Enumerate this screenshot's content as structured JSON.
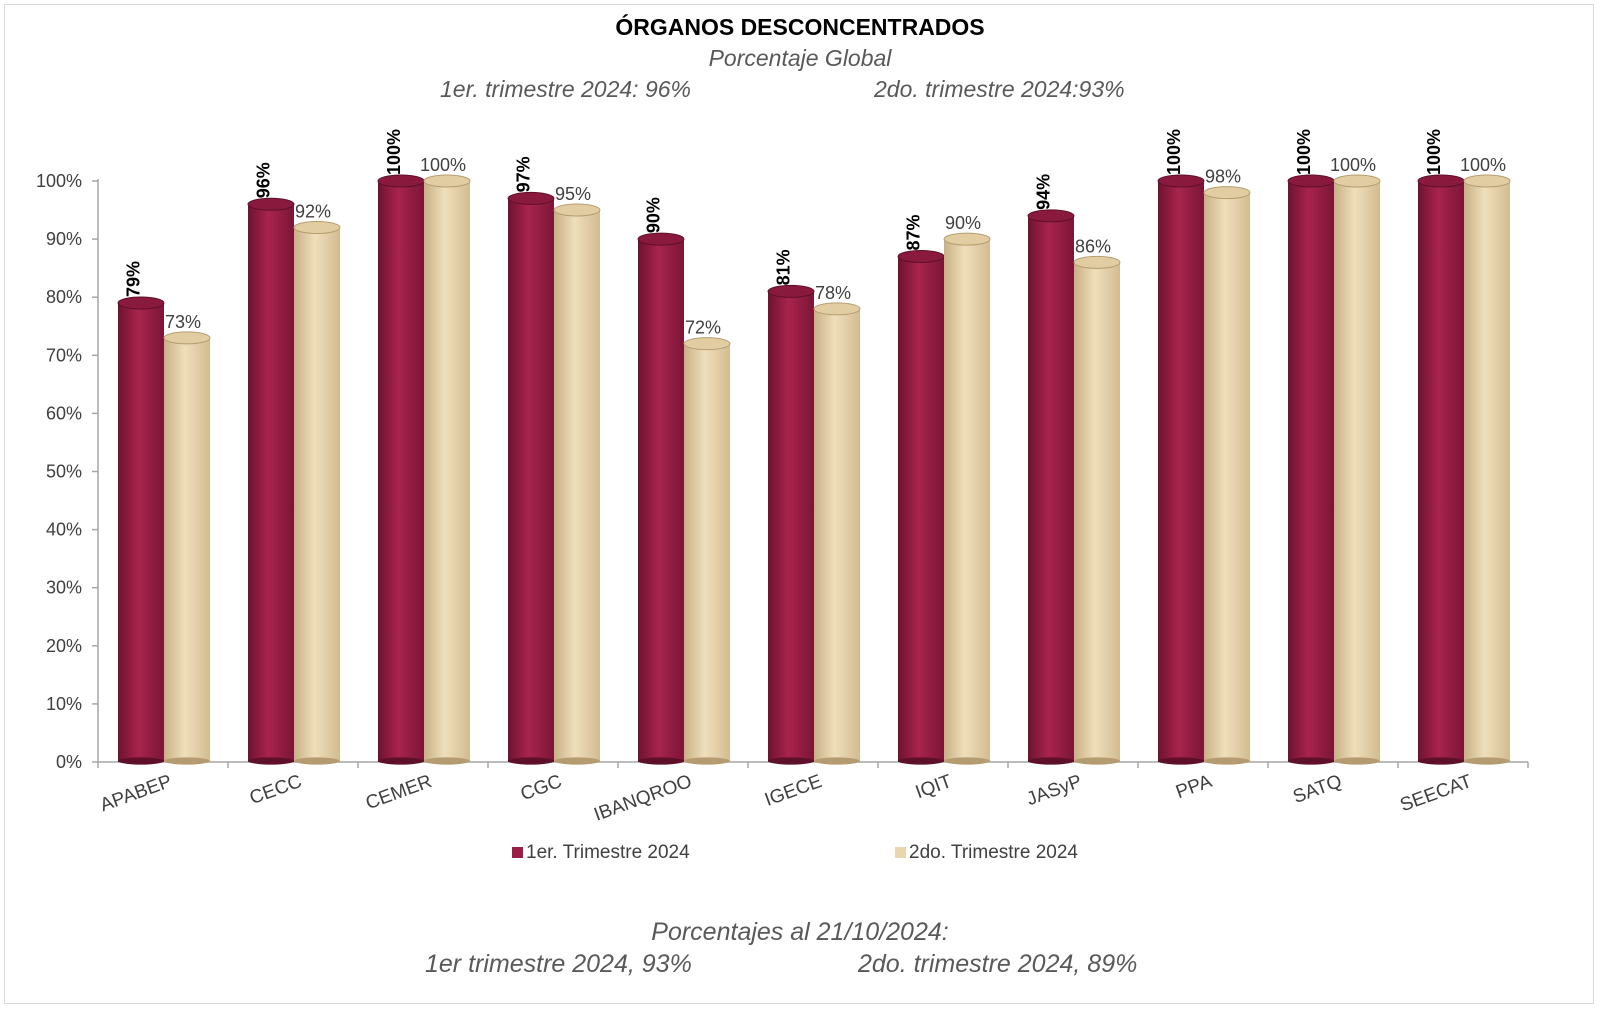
{
  "title": "ÓRGANOS DESCONCENTRADOS",
  "subtitle": "Porcentaje Global",
  "summary_q1": "1er. trimestre 2024: 96%",
  "summary_q2": "2do. trimestre 2024:93%",
  "footer": {
    "line1": "Porcentajes al 21/10/2024:",
    "line2_q1": "1er trimestre  2024,  93%",
    "line2_q2": "2do. trimestre 2024, 89%"
  },
  "colors": {
    "series1": "#9b1e45",
    "series1_dark": "#6e1230",
    "series2": "#ead6ad",
    "series2_dark": "#c9b288"
  },
  "chart_data": {
    "type": "bar",
    "categories": [
      "APABEP",
      "CECC",
      "CEMER",
      "CGC",
      "IBANQROO",
      "IGECE",
      "IQIT",
      "JASyP",
      "PPA",
      "SATQ",
      "SEECAT"
    ],
    "series": [
      {
        "name": "1er. Trimestre 2024",
        "values": [
          79,
          96,
          100,
          97,
          90,
          81,
          87,
          94,
          100,
          100,
          100
        ],
        "labels": [
          "79%",
          "96%",
          "100%",
          "97%",
          "90%",
          "81%",
          "87%",
          "94%",
          "100%",
          "100%",
          "100%"
        ]
      },
      {
        "name": "2do. Trimestre 2024",
        "values": [
          73,
          92,
          100,
          95,
          72,
          78,
          90,
          86,
          98,
          100,
          100
        ],
        "labels": [
          "73%",
          "92%",
          "100%",
          "95%",
          "72%",
          "78%",
          "90%",
          "86%",
          "98%",
          "100%",
          "100%"
        ]
      }
    ],
    "yticks": [
      "0%",
      "10%",
      "20%",
      "30%",
      "40%",
      "50%",
      "60%",
      "70%",
      "80%",
      "90%",
      "100%"
    ],
    "ylim": [
      0,
      100
    ],
    "legend_position": "bottom",
    "grid": false
  }
}
